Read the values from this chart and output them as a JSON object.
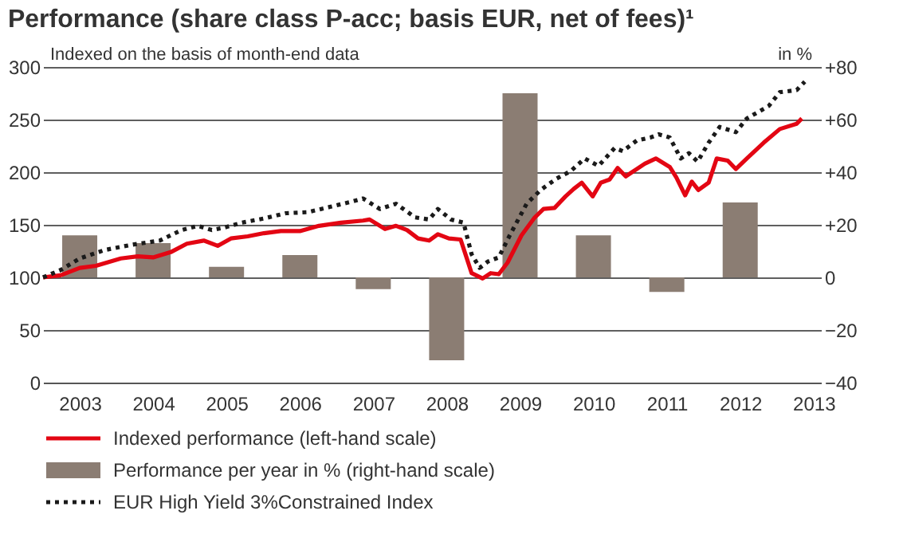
{
  "chart_data": {
    "type": "line",
    "title": "Performance (share class P-acc; basis EUR, net of fees)¹",
    "ylabel": "Indexed on the basis of month-end data",
    "y2label": "in %",
    "xlim": [
      2002.5,
      2013.1
    ],
    "xticks": [
      2003,
      2004,
      2005,
      2006,
      2007,
      2008,
      2009,
      2010,
      2011,
      2012,
      2013
    ],
    "ylim": [
      0,
      300
    ],
    "yticks": [
      0,
      50,
      100,
      150,
      200,
      250,
      300
    ],
    "y2lim": [
      -40,
      80
    ],
    "y2ticks": [
      {
        "value": -40,
        "label": "−40"
      },
      {
        "value": -20,
        "label": "−20"
      },
      0,
      {
        "value": 20,
        "label": "+20"
      },
      {
        "value": 40,
        "label": "+40"
      },
      {
        "value": 60,
        "label": "+60"
      },
      {
        "value": 80,
        "label": "+80"
      }
    ],
    "grid": "y",
    "legend": "bottom",
    "series": [
      {
        "name": "Indexed performance (left-hand scale)",
        "axis": "y",
        "color": "#e30613",
        "line_style": "solid",
        "x": [
          2002.5,
          2002.74,
          2003.0,
          2003.22,
          2003.56,
          2003.79,
          2004.0,
          2004.24,
          2004.46,
          2004.69,
          2004.88,
          2005.06,
          2005.29,
          2005.51,
          2005.74,
          2006.0,
          2006.26,
          2006.56,
          2006.86,
          2006.95,
          2007.16,
          2007.31,
          2007.46,
          2007.61,
          2007.76,
          2007.88,
          2008.03,
          2008.19,
          2008.27,
          2008.34,
          2008.49,
          2008.6,
          2008.71,
          2008.83,
          2009.02,
          2009.2,
          2009.32,
          2009.47,
          2009.62,
          2009.73,
          2009.84,
          2009.99,
          2010.1,
          2010.22,
          2010.33,
          2010.44,
          2010.59,
          2010.7,
          2010.85,
          2011.04,
          2011.13,
          2011.25,
          2011.34,
          2011.43,
          2011.57,
          2011.68,
          2011.83,
          2011.94,
          2012.09,
          2012.32,
          2012.54,
          2012.77,
          2012.84
        ],
        "values": [
          100,
          102,
          109,
          111,
          118,
          120,
          119,
          124,
          132,
          135,
          130,
          137,
          139,
          142,
          144,
          144,
          149,
          152,
          154,
          155,
          146,
          149,
          145,
          137,
          135,
          141,
          137,
          136,
          119,
          104,
          99,
          104,
          103,
          114,
          140,
          157,
          165,
          166,
          177,
          184,
          190,
          177,
          190,
          193,
          204,
          196,
          203,
          208,
          213,
          205,
          195,
          178,
          191,
          183,
          190,
          213,
          211,
          203,
          213,
          228,
          241,
          246,
          251
        ]
      },
      {
        "name": "Performance per year in % (right-hand scale)",
        "type": "bar",
        "axis": "y2",
        "color": "#8b7d73",
        "x": [
          2003,
          2004,
          2005,
          2006,
          2007,
          2008,
          2009,
          2010,
          2011,
          2012
        ],
        "values": [
          16,
          13,
          4,
          8.5,
          -4.5,
          -31.5,
          70,
          16,
          -5.5,
          28.5
        ]
      },
      {
        "name": "EUR High Yield 3%Constrained Index",
        "axis": "y",
        "color": "#1a1a1a",
        "line_style": "dotted",
        "x": [
          2002.5,
          2002.74,
          2003.0,
          2003.34,
          2003.71,
          2004.09,
          2004.39,
          2004.61,
          2004.8,
          2004.95,
          2005.21,
          2005.51,
          2005.81,
          2006.11,
          2006.41,
          2006.71,
          2006.86,
          2007.09,
          2007.31,
          2007.57,
          2007.76,
          2007.88,
          2008.06,
          2008.23,
          2008.34,
          2008.45,
          2008.56,
          2008.71,
          2008.86,
          2009.09,
          2009.28,
          2009.5,
          2009.69,
          2009.88,
          2010.07,
          2010.29,
          2010.4,
          2010.59,
          2010.78,
          2010.89,
          2011.04,
          2011.19,
          2011.3,
          2011.42,
          2011.57,
          2011.72,
          2011.94,
          2012.09,
          2012.39,
          2012.54,
          2012.77,
          2012.88
        ],
        "values": [
          100,
          107,
          118,
          126,
          131,
          135,
          145,
          149,
          145,
          147,
          152,
          156,
          161,
          162,
          167,
          172,
          175,
          165,
          170,
          157,
          155,
          165,
          155,
          152,
          122,
          109,
          115,
          119,
          140,
          170,
          183,
          194,
          201,
          213,
          206,
          223,
          220,
          230,
          233,
          236,
          233,
          213,
          218,
          210,
          228,
          243,
          238,
          251,
          263,
          276,
          278,
          286
        ]
      }
    ]
  }
}
